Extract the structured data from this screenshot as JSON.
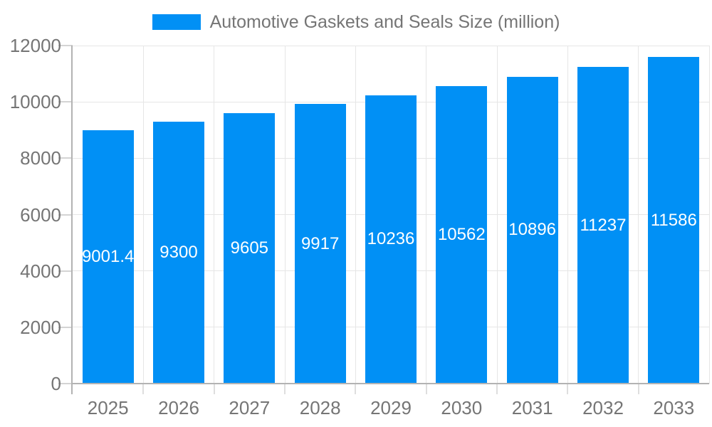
{
  "chart_data": {
    "type": "bar",
    "title": "Automotive Gaskets and Seals Size (million)",
    "legend_position": "top",
    "categories": [
      "2025",
      "2026",
      "2027",
      "2028",
      "2029",
      "2030",
      "2031",
      "2032",
      "2033"
    ],
    "values": [
      9001.4,
      9300,
      9605,
      9917,
      10236,
      10562,
      10896,
      11237,
      11586
    ],
    "bar_labels": [
      "9001.4",
      "9300",
      "9605",
      "9917",
      "10236",
      "10562",
      "10896",
      "11237",
      "11586"
    ],
    "xlabel": "",
    "ylabel": "",
    "ylim": [
      0,
      12000
    ],
    "yticks": [
      0,
      2000,
      4000,
      6000,
      8000,
      10000,
      12000
    ],
    "ytick_labels": [
      "0",
      "2000",
      "4000",
      "6000",
      "8000",
      "10000",
      "12000"
    ],
    "grid": true,
    "colors": {
      "bar": "#0190f5",
      "grid_line": "#e6e6e6",
      "axis_line": "#b3b3b3",
      "axis_text": "#757575",
      "bar_label_text": "#ffffff",
      "background": "#ffffff"
    }
  }
}
